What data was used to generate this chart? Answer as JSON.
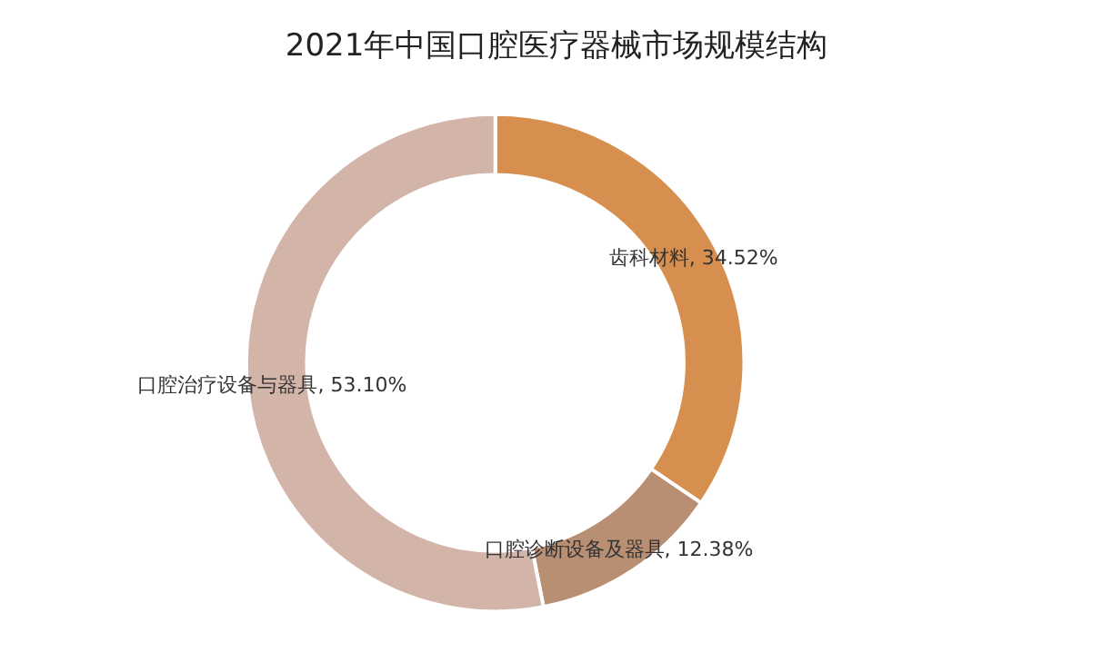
{
  "chart_data": {
    "type": "donut",
    "title": "2021年中国口腔医疗器械市场规模结构",
    "categories": [
      "齿科材料",
      "口腔诊断设备及器具",
      "口腔治疗设备与器具"
    ],
    "values": [
      34.52,
      12.38,
      53.1
    ],
    "value_labels": [
      "34.52%",
      "12.38%",
      "53.10%"
    ],
    "colors": [
      "#d68f4e",
      "#b98f73",
      "#d3b4a8"
    ],
    "legend": false
  }
}
